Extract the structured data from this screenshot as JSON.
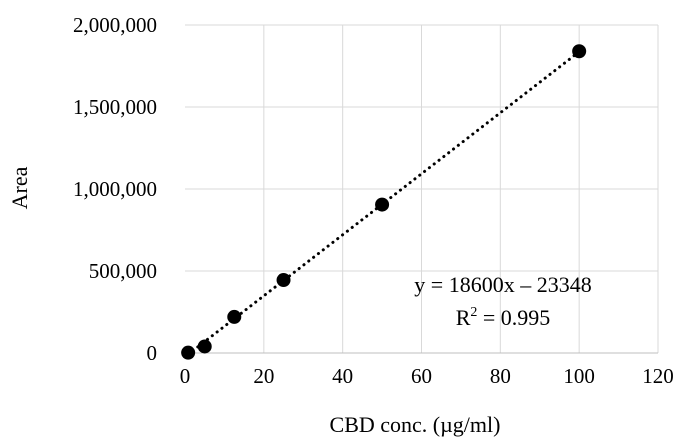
{
  "chart_data": {
    "type": "scatter",
    "title": "",
    "xlabel": "CBD conc. (µg/ml)",
    "ylabel": "Area",
    "xlim": [
      0,
      120
    ],
    "ylim": [
      0,
      2000000
    ],
    "grid": true,
    "legend": "none",
    "x_ticks": [
      "0",
      "20",
      "40",
      "60",
      "80",
      "100",
      "120"
    ],
    "y_ticks": [
      "0",
      "500,000",
      "1,000,000",
      "1,500,000",
      "2,000,000"
    ],
    "series": [
      {
        "x": [
          0.8,
          5,
          12.5,
          25,
          50,
          100
        ],
        "y": [
          2000,
          40000,
          220000,
          445000,
          905000,
          1840000
        ]
      }
    ],
    "trendline": {
      "type": "linear",
      "slope": 18600,
      "intercept": -23348,
      "x_range": [
        0.8,
        100
      ],
      "style": "dotted"
    },
    "annotations": {
      "equation": "y = 18600x – 23348",
      "r_squared_prefix": "R",
      "r_squared_sup": "2",
      "r_squared_suffix": " = 0.995"
    },
    "colors": {
      "marker": "#000000",
      "trendline": "#000000",
      "grid": "#d9d9d9",
      "axis": "#bfbfbf"
    }
  }
}
